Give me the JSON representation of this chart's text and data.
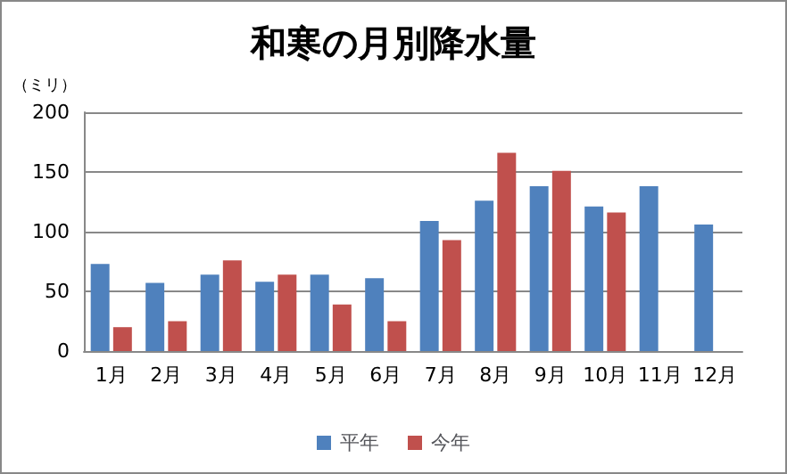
{
  "chart_data": {
    "type": "bar",
    "title": "和寒の月別降水量",
    "ylabel": "（ミリ）",
    "categories": [
      "1月",
      "2月",
      "3月",
      "4月",
      "5月",
      "6月",
      "7月",
      "8月",
      "9月",
      "10月",
      "11月",
      "12月"
    ],
    "series": [
      {
        "name": "平年",
        "color": "#4f81bd",
        "values": [
          73,
          57,
          64,
          58,
          64,
          61,
          109,
          126,
          138,
          121,
          138,
          106
        ]
      },
      {
        "name": "今年",
        "color": "#c0504d",
        "values": [
          20,
          25,
          76,
          64,
          39,
          25,
          93,
          166,
          151,
          116,
          null,
          null
        ]
      }
    ],
    "ylim": [
      0,
      200
    ],
    "yticks": [
      0,
      50,
      100,
      150,
      200
    ],
    "grid": "y",
    "legend": "bottom"
  }
}
